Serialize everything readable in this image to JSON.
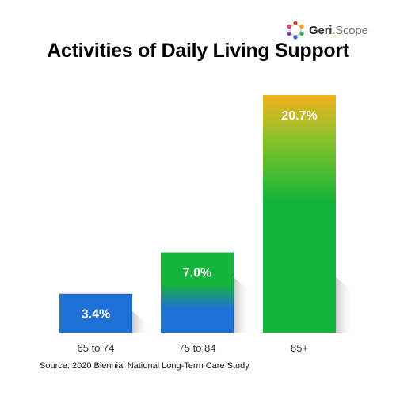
{
  "brand": {
    "part1": "Geri",
    "separator": ".",
    "part2": "Scope",
    "colors": [
      "#e2462f",
      "#f2a30f",
      "#2fb34a",
      "#1f6fd6",
      "#8b3fb5",
      "#e23d8f"
    ]
  },
  "chart_data": {
    "type": "bar",
    "title": "Activities of Daily Living Support",
    "categories": [
      "65 to 74",
      "75 to 84",
      "85+"
    ],
    "values": [
      3.4,
      7.0,
      20.7
    ],
    "value_labels": [
      "3.4%",
      "7.0%",
      "20.7%"
    ],
    "ylim": [
      0,
      21.5
    ],
    "grid": false,
    "legend": "none",
    "colors": {
      "bottom": "#1f6fd6",
      "middle": "#12b43a",
      "top": "#f2b21c"
    }
  },
  "source": "Source: 2020 Biennial National Long-Term Care Study"
}
